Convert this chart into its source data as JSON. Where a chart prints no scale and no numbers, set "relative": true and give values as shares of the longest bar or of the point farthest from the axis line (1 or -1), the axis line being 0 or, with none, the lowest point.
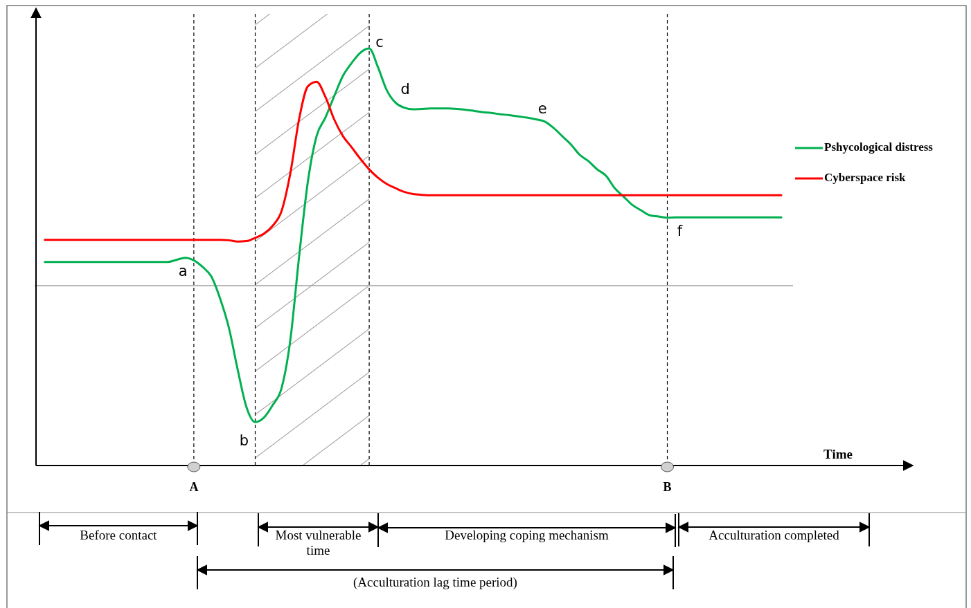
{
  "chart_data": {
    "type": "line",
    "xlabel": "Time",
    "relative": true,
    "categories": [
      null,
      null,
      null,
      null,
      null,
      null,
      null,
      null,
      null,
      null,
      null,
      null,
      null,
      null,
      null,
      null,
      null,
      null,
      "A",
      null,
      null,
      null,
      null,
      null,
      null,
      null,
      null,
      null,
      null,
      null,
      null,
      null,
      null,
      null,
      null,
      null,
      null,
      null,
      null,
      null,
      null,
      null,
      null,
      null,
      null,
      null,
      null,
      null,
      null,
      null,
      null,
      null,
      null,
      null,
      null,
      null,
      null,
      null,
      null,
      null,
      null,
      null,
      null,
      null,
      null,
      null,
      null,
      null,
      null,
      null,
      null,
      null,
      "B",
      null,
      null,
      null,
      null,
      null,
      null,
      null,
      null,
      null,
      null,
      null,
      null,
      null,
      null,
      null,
      null,
      null,
      null,
      null,
      null,
      null,
      null,
      null,
      null,
      null,
      null,
      null,
      null
    ],
    "legend": "right",
    "series": [
      {
        "name": "Pshycological distress",
        "color": "#00b050",
        "values": [
          null,
          0.488,
          0.488,
          0.488,
          0.488,
          0.488,
          0.488,
          0.488,
          0.488,
          0.488,
          0.488,
          0.488,
          0.488,
          0.488,
          0.488,
          0.488,
          0.493,
          0.498,
          0.492,
          0.476,
          0.453,
          0.4,
          0.33,
          0.23,
          0.14,
          0.104,
          0.115,
          0.145,
          0.185,
          0.3,
          0.5,
          0.68,
          0.79,
          0.834,
          0.885,
          0.934,
          0.965,
          0.99,
          1.0,
          0.955,
          0.9,
          0.87,
          0.858,
          0.854,
          0.855,
          0.856,
          0.856,
          0.856,
          0.855,
          0.853,
          0.85,
          0.847,
          0.845,
          0.842,
          0.84,
          0.837,
          0.834,
          0.83,
          0.825,
          0.81,
          0.79,
          0.77,
          0.745,
          0.73,
          0.71,
          0.695,
          0.665,
          0.645,
          0.625,
          0.612,
          0.6,
          0.597,
          0.594,
          0.595,
          0.595,
          0.595,
          0.595,
          0.595,
          0.595,
          0.595,
          0.595,
          0.595,
          0.595,
          0.595,
          0.595,
          0.595,
          null,
          null,
          null,
          null,
          null,
          null,
          null,
          null,
          null,
          null,
          null,
          null,
          null,
          null,
          null
        ]
      },
      {
        "name": "Cyberspace risk",
        "color": "#ff0000",
        "values": [
          null,
          0.541,
          0.541,
          0.541,
          0.541,
          0.541,
          0.541,
          0.541,
          0.541,
          0.541,
          0.541,
          0.541,
          0.541,
          0.541,
          0.541,
          0.541,
          0.541,
          0.541,
          0.541,
          0.541,
          0.541,
          0.541,
          0.54,
          0.537,
          0.538,
          0.546,
          0.556,
          0.575,
          0.61,
          0.7,
          0.83,
          0.909,
          0.92,
          0.884,
          0.83,
          0.79,
          0.763,
          0.735,
          0.71,
          0.69,
          0.675,
          0.665,
          0.656,
          0.651,
          0.649,
          0.648,
          0.648,
          0.648,
          0.648,
          0.648,
          0.648,
          0.648,
          0.648,
          0.648,
          0.648,
          0.648,
          0.648,
          0.648,
          0.648,
          0.648,
          0.648,
          0.648,
          0.648,
          0.648,
          0.648,
          0.648,
          0.648,
          0.648,
          0.648,
          0.648,
          0.648,
          0.648,
          0.648,
          0.648,
          0.648,
          0.648,
          0.648,
          0.648,
          0.648,
          0.648,
          0.648,
          0.648,
          0.648,
          0.648,
          0.648,
          0.648,
          null,
          null,
          null,
          null,
          null,
          null,
          null,
          null,
          null,
          null,
          null,
          null,
          null,
          null,
          null
        ]
      }
    ],
    "ref_lines": [
      {
        "axis": "y",
        "value": 0.431,
        "color": "#a0a0a0",
        "line_style": "solid"
      }
    ],
    "grid": "x",
    "annotations": [
      "a",
      "b",
      "c",
      "d",
      "e",
      "f",
      "Before contact",
      "Most vulnerable time",
      "Developing coping mechanism",
      "Acculturation completed",
      "(Acculturation lag time period)"
    ]
  }
}
